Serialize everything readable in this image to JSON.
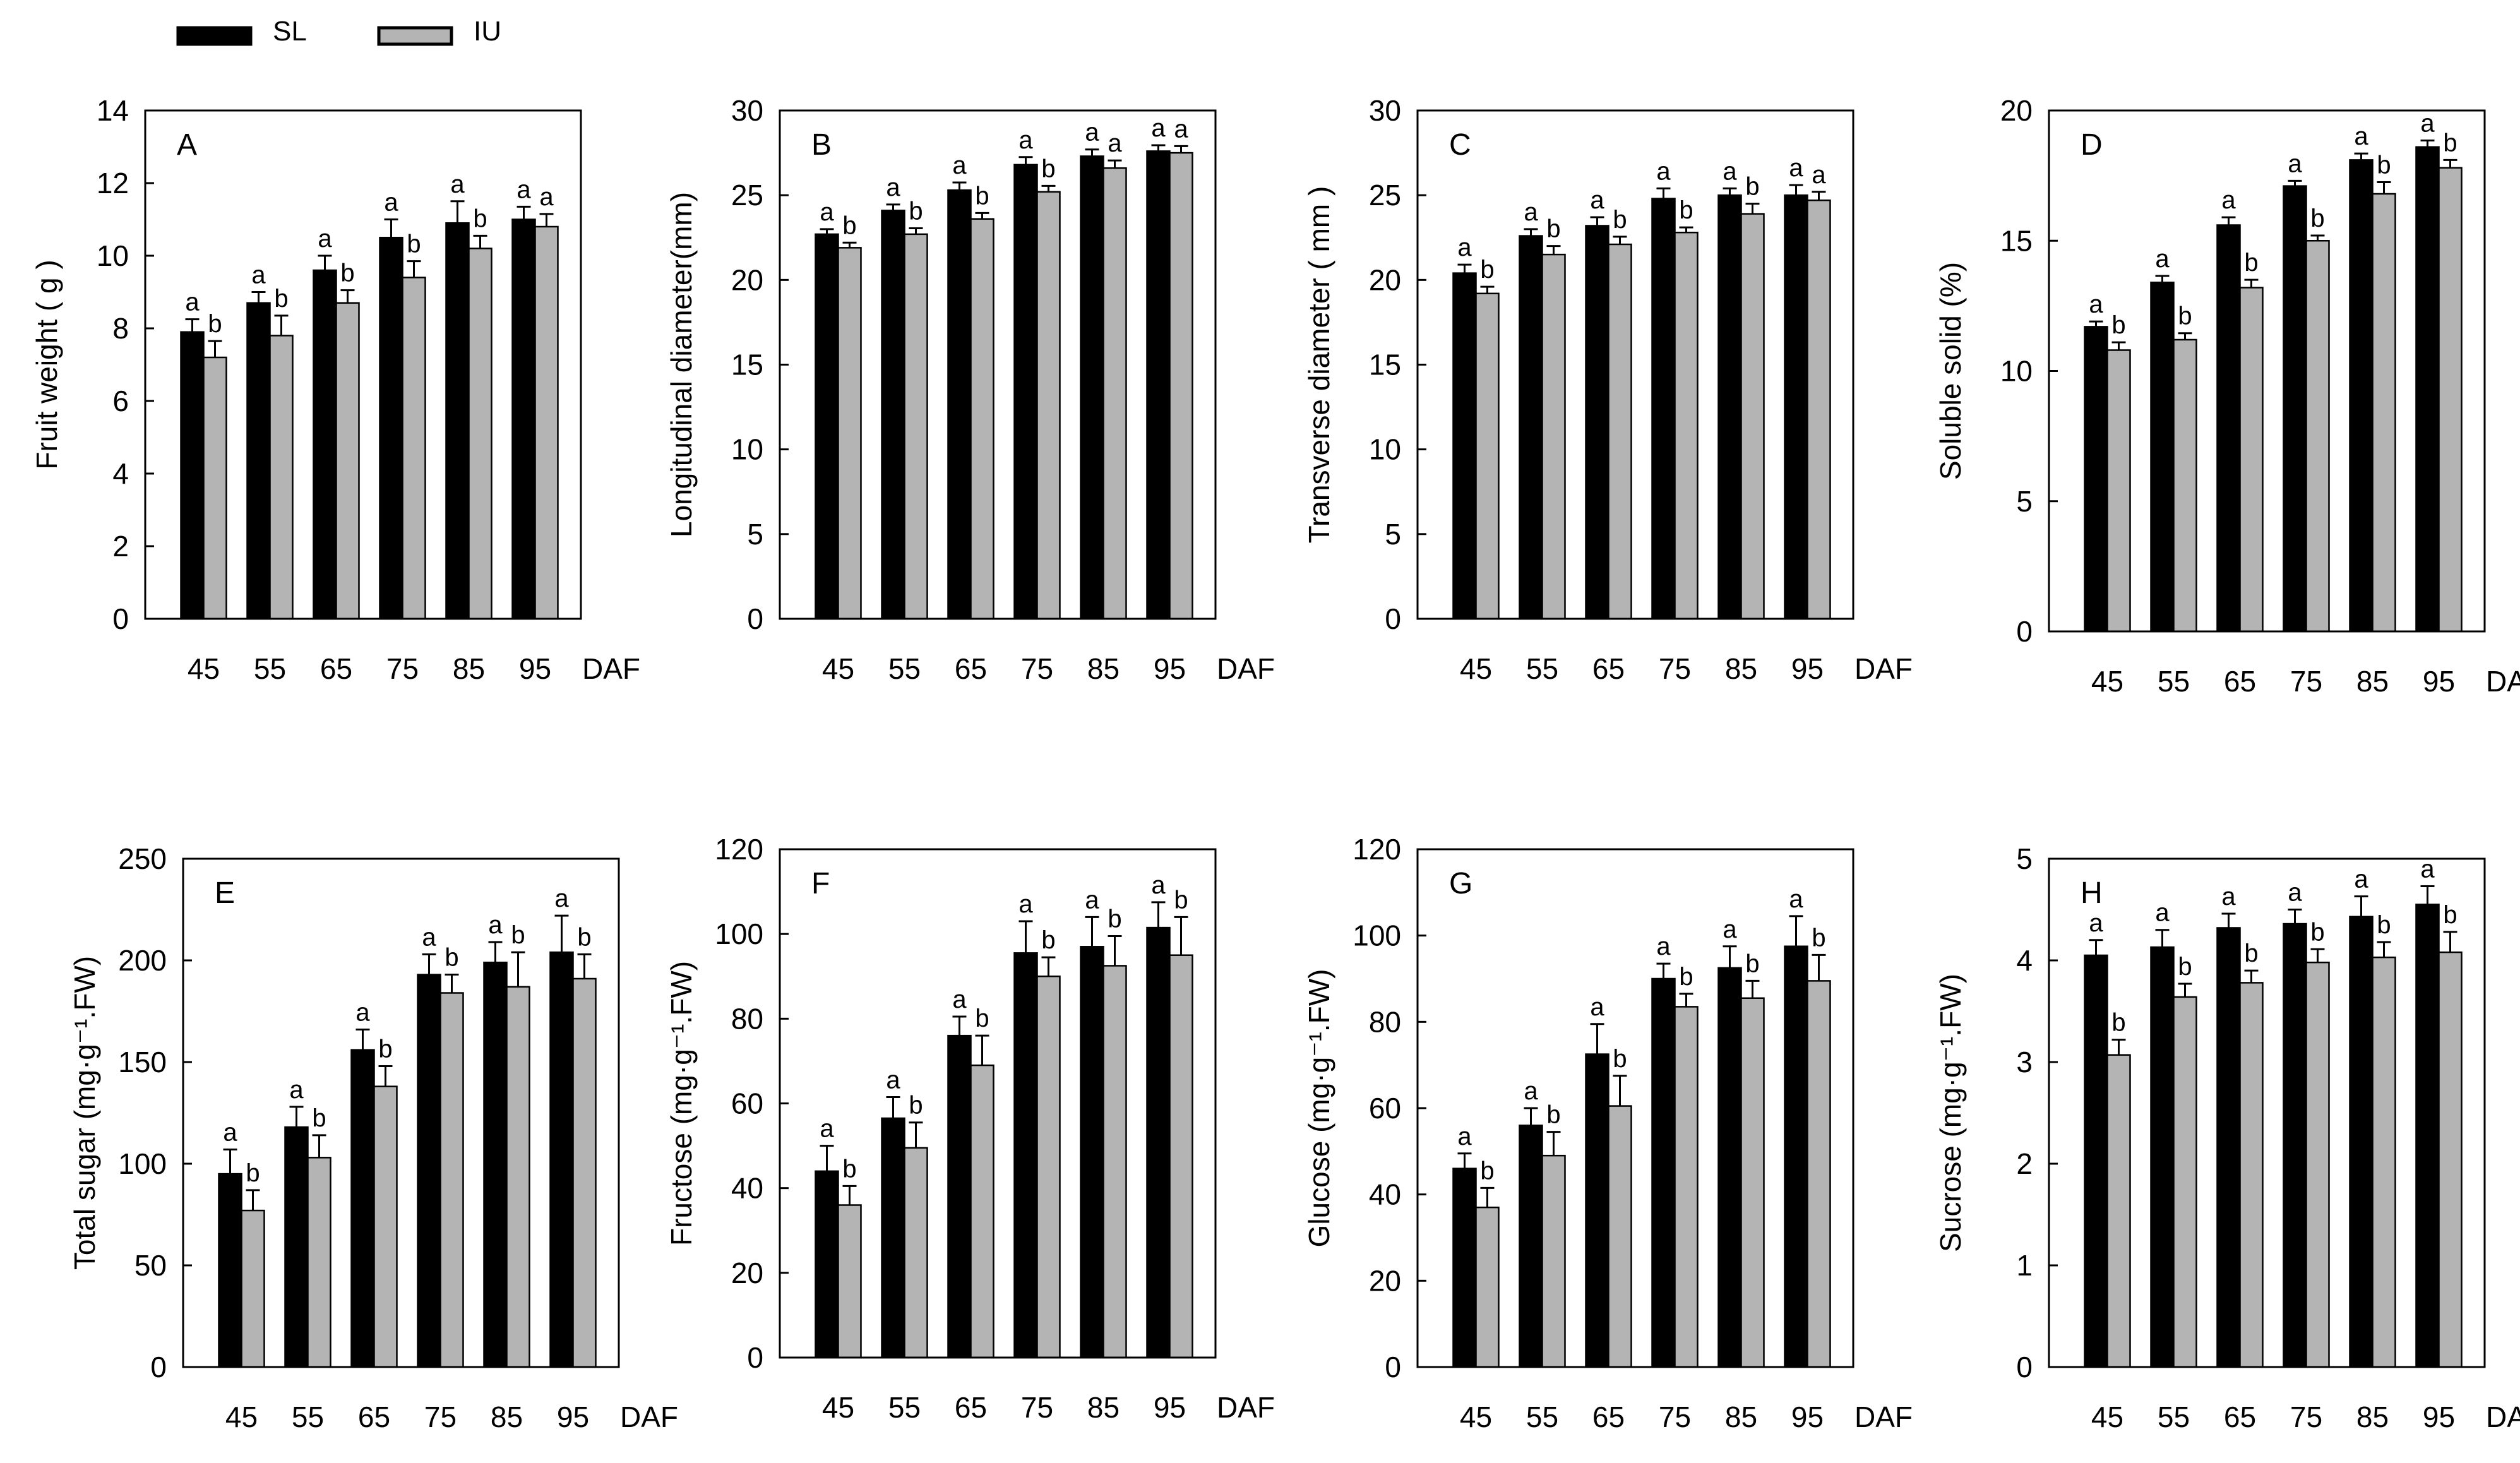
{
  "legend": {
    "position": "top-left",
    "items": [
      {
        "name": "SL",
        "color": "#000000"
      },
      {
        "name": "IU",
        "color": "#b4b4b4"
      }
    ]
  },
  "colors": {
    "series_sl": "#000000",
    "series_iu": "#b4b4b4",
    "axis": "#000000"
  },
  "chart_data": [
    {
      "id": "A",
      "type": "bar",
      "panel_label": "A",
      "ylabel": "Fruit weight ( g )",
      "xlabel": "DAF",
      "categories": [
        "45",
        "55",
        "65",
        "75",
        "85",
        "95"
      ],
      "ylim": [
        0,
        14
      ],
      "yticks": [
        0,
        2,
        4,
        6,
        8,
        10,
        12,
        14
      ],
      "series": [
        {
          "name": "SL",
          "values": [
            7.9,
            8.7,
            9.6,
            10.5,
            10.9,
            11.0
          ],
          "errors": [
            0.35,
            0.3,
            0.4,
            0.5,
            0.6,
            0.35
          ],
          "letters": [
            "a",
            "a",
            "a",
            "a",
            "a",
            "a"
          ]
        },
        {
          "name": "IU",
          "values": [
            7.2,
            7.8,
            8.7,
            9.4,
            10.2,
            10.8
          ],
          "errors": [
            0.45,
            0.55,
            0.35,
            0.45,
            0.35,
            0.35
          ],
          "letters": [
            "b",
            "b",
            "b",
            "b",
            "b",
            "a"
          ]
        }
      ]
    },
    {
      "id": "B",
      "type": "bar",
      "panel_label": "B",
      "ylabel": "Longitudinal diameter(mm)",
      "xlabel": "DAF",
      "categories": [
        "45",
        "55",
        "65",
        "75",
        "85",
        "95"
      ],
      "ylim": [
        0,
        30
      ],
      "yticks": [
        0,
        5,
        10,
        15,
        20,
        25,
        30
      ],
      "series": [
        {
          "name": "SL",
          "values": [
            22.7,
            24.1,
            25.3,
            26.8,
            27.3,
            27.6
          ],
          "errors": [
            0.3,
            0.35,
            0.45,
            0.45,
            0.4,
            0.35
          ],
          "letters": [
            "a",
            "a",
            "a",
            "a",
            "a",
            "a"
          ]
        },
        {
          "name": "IU",
          "values": [
            21.9,
            22.7,
            23.6,
            25.2,
            26.6,
            27.5
          ],
          "errors": [
            0.3,
            0.35,
            0.35,
            0.35,
            0.45,
            0.4
          ],
          "letters": [
            "b",
            "b",
            "b",
            "b",
            "a",
            "a"
          ]
        }
      ]
    },
    {
      "id": "C",
      "type": "bar",
      "panel_label": "C",
      "ylabel": "Transverse diameter ( mm )",
      "xlabel": "DAF",
      "categories": [
        "45",
        "55",
        "65",
        "75",
        "85",
        "95"
      ],
      "ylim": [
        0,
        30
      ],
      "yticks": [
        0,
        5,
        10,
        15,
        20,
        25,
        30
      ],
      "series": [
        {
          "name": "SL",
          "values": [
            20.4,
            22.6,
            23.2,
            24.8,
            25.0,
            25.0
          ],
          "errors": [
            0.5,
            0.4,
            0.5,
            0.6,
            0.4,
            0.6
          ],
          "letters": [
            "a",
            "a",
            "a",
            "a",
            "a",
            "a"
          ]
        },
        {
          "name": "IU",
          "values": [
            19.2,
            21.5,
            22.1,
            22.8,
            23.9,
            24.7
          ],
          "errors": [
            0.4,
            0.5,
            0.45,
            0.3,
            0.6,
            0.5
          ],
          "letters": [
            "b",
            "b",
            "b",
            "b",
            "b",
            "a"
          ]
        }
      ]
    },
    {
      "id": "D",
      "type": "bar",
      "panel_label": "D",
      "ylabel": "Soluble solid (%)",
      "xlabel": "DAF",
      "categories": [
        "45",
        "55",
        "65",
        "75",
        "85",
        "95"
      ],
      "ylim": [
        0,
        20
      ],
      "yticks": [
        0,
        5,
        10,
        15,
        20
      ],
      "series": [
        {
          "name": "SL",
          "values": [
            11.7,
            13.4,
            15.6,
            17.1,
            18.1,
            18.6
          ],
          "errors": [
            0.2,
            0.25,
            0.3,
            0.2,
            0.25,
            0.25
          ],
          "letters": [
            "a",
            "a",
            "a",
            "a",
            "a",
            "a"
          ]
        },
        {
          "name": "IU",
          "values": [
            10.8,
            11.2,
            13.2,
            15.0,
            16.8,
            17.8
          ],
          "errors": [
            0.3,
            0.25,
            0.3,
            0.2,
            0.45,
            0.3
          ],
          "letters": [
            "b",
            "b",
            "b",
            "b",
            "b",
            "b"
          ]
        }
      ]
    },
    {
      "id": "E",
      "type": "bar",
      "panel_label": "E",
      "ylabel": "Total sugar (mg·g⁻¹.FW)",
      "xlabel": "DAF",
      "categories": [
        "45",
        "55",
        "65",
        "75",
        "85",
        "95"
      ],
      "ylim": [
        0,
        250
      ],
      "yticks": [
        0,
        50,
        100,
        150,
        200,
        250
      ],
      "series": [
        {
          "name": "SL",
          "values": [
            95,
            118,
            156,
            193,
            199,
            204
          ],
          "errors": [
            12,
            10,
            10,
            10,
            10,
            18
          ],
          "letters": [
            "a",
            "a",
            "a",
            "a",
            "a",
            "a"
          ]
        },
        {
          "name": "IU",
          "values": [
            77,
            103,
            138,
            184,
            187,
            191
          ],
          "errors": [
            10,
            11,
            10,
            9,
            17,
            12
          ],
          "letters": [
            "b",
            "b",
            "b",
            "b",
            "b",
            "b"
          ]
        }
      ]
    },
    {
      "id": "F",
      "type": "bar",
      "panel_label": "F",
      "ylabel": "Fructose (mg·g⁻¹.FW)",
      "xlabel": "DAF",
      "categories": [
        "45",
        "55",
        "65",
        "75",
        "85",
        "95"
      ],
      "ylim": [
        0,
        120
      ],
      "yticks": [
        0,
        20,
        40,
        60,
        80,
        100,
        120
      ],
      "series": [
        {
          "name": "SL",
          "values": [
            44,
            56.5,
            76,
            95.5,
            97,
            101.5
          ],
          "errors": [
            6,
            5,
            4.5,
            7.5,
            7,
            6
          ],
          "letters": [
            "a",
            "a",
            "a",
            "a",
            "a",
            "a"
          ]
        },
        {
          "name": "IU",
          "values": [
            36,
            49.5,
            69,
            90,
            92.5,
            95
          ],
          "errors": [
            4.5,
            6,
            7,
            4.5,
            7,
            9
          ],
          "letters": [
            "b",
            "b",
            "b",
            "b",
            "b",
            "b"
          ]
        }
      ]
    },
    {
      "id": "G",
      "type": "bar",
      "panel_label": "G",
      "ylabel": "Glucose (mg·g⁻¹.FW)",
      "xlabel": "DAF",
      "categories": [
        "45",
        "55",
        "65",
        "75",
        "85",
        "95"
      ],
      "ylim": [
        0,
        120
      ],
      "yticks": [
        0,
        20,
        40,
        60,
        80,
        100,
        120
      ],
      "series": [
        {
          "name": "SL",
          "values": [
            46,
            56,
            72.5,
            90,
            92.5,
            97.5
          ],
          "errors": [
            3.5,
            4,
            7,
            3.5,
            5,
            7
          ],
          "letters": [
            "a",
            "a",
            "a",
            "a",
            "a",
            "a"
          ]
        },
        {
          "name": "IU",
          "values": [
            37,
            49,
            60.5,
            83.5,
            85.5,
            89.5
          ],
          "errors": [
            4.5,
            5.5,
            7,
            3,
            4,
            6
          ],
          "letters": [
            "b",
            "b",
            "b",
            "b",
            "b",
            "b"
          ]
        }
      ]
    },
    {
      "id": "H",
      "type": "bar",
      "panel_label": "H",
      "ylabel": "Sucrose (mg·g⁻¹.FW)",
      "xlabel": "DAF",
      "categories": [
        "45",
        "55",
        "65",
        "75",
        "85",
        "95"
      ],
      "ylim": [
        0,
        5
      ],
      "yticks": [
        0,
        1,
        2,
        3,
        4,
        5
      ],
      "series": [
        {
          "name": "SL",
          "values": [
            4.05,
            4.13,
            4.32,
            4.36,
            4.43,
            4.55
          ],
          "errors": [
            0.15,
            0.17,
            0.14,
            0.14,
            0.2,
            0.18
          ],
          "letters": [
            "a",
            "a",
            "a",
            "a",
            "a",
            "a"
          ]
        },
        {
          "name": "IU",
          "values": [
            3.07,
            3.64,
            3.78,
            3.98,
            4.03,
            4.08
          ],
          "errors": [
            0.15,
            0.13,
            0.12,
            0.13,
            0.15,
            0.2
          ],
          "letters": [
            "b",
            "b",
            "b",
            "b",
            "b",
            "b"
          ]
        }
      ]
    }
  ]
}
